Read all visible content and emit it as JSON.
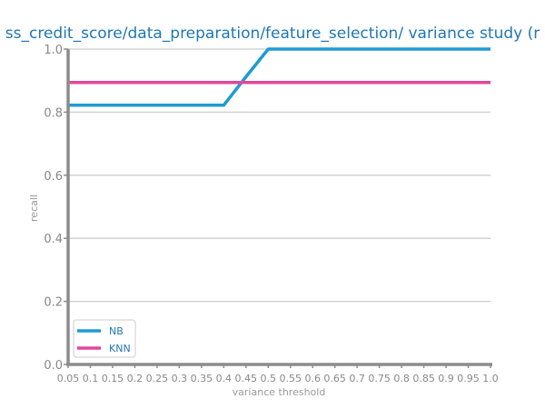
{
  "chart_data": {
    "type": "line",
    "title": "ss_credit_score/data_preparation/feature_selection/ variance study (r",
    "xlabel": "variance threshold",
    "ylabel": "recall",
    "x": [
      0.05,
      0.1,
      0.15,
      0.2,
      0.25,
      0.3,
      0.35,
      0.4,
      0.45,
      0.5,
      0.55,
      0.6,
      0.65,
      0.7,
      0.75,
      0.8,
      0.85,
      0.9,
      0.95,
      1.0
    ],
    "x_tick_labels": [
      "0.05",
      "0.1",
      "0.15",
      "0.2",
      "0.25",
      "0.3",
      "0.35",
      "0.4",
      "0.45",
      "0.5",
      "0.55",
      "0.6",
      "0.65",
      "0.7",
      "0.75",
      "0.8",
      "0.85",
      "0.9",
      "0.95",
      "1.0"
    ],
    "xlim": [
      0.05,
      1.0
    ],
    "ylim": [
      0.0,
      1.0
    ],
    "y_ticks": [
      0.0,
      0.2,
      0.4,
      0.6,
      0.8,
      1.0
    ],
    "y_tick_labels": [
      "0.0",
      "0.2",
      "0.4",
      "0.6",
      "0.8",
      "1.0"
    ],
    "grid": "horizontal",
    "legend_position": "bottom-left",
    "series": [
      {
        "name": "NB",
        "color": "#1f9bd4",
        "values": [
          0.822,
          0.822,
          0.822,
          0.822,
          0.822,
          0.822,
          0.822,
          0.822,
          0.912,
          1.0,
          1.0,
          1.0,
          1.0,
          1.0,
          1.0,
          1.0,
          1.0,
          1.0,
          1.0,
          1.0
        ]
      },
      {
        "name": "KNN",
        "color": "#e0479e",
        "values": [
          0.894,
          0.894,
          0.894,
          0.894,
          0.894,
          0.894,
          0.894,
          0.894,
          0.894,
          0.894,
          0.894,
          0.894,
          0.894,
          0.894,
          0.894,
          0.894,
          0.894,
          0.894,
          0.894,
          0.894
        ]
      }
    ]
  }
}
